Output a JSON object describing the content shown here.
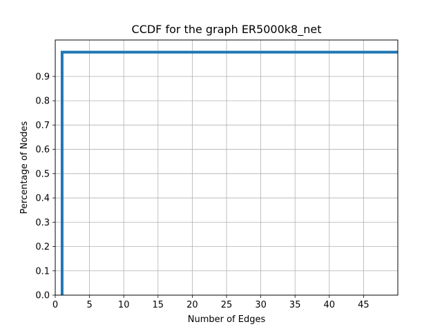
{
  "chart_data": {
    "type": "line",
    "title": "CCDF for the graph ER5000k8_net",
    "xlabel": "Number of Edges",
    "ylabel": "Percentage of Nodes",
    "xlim": [
      0,
      50
    ],
    "ylim": [
      0,
      1.05
    ],
    "xticks": [
      0,
      5,
      10,
      15,
      20,
      25,
      30,
      35,
      40,
      45
    ],
    "yticks": [
      0.0,
      0.1,
      0.2,
      0.3,
      0.4,
      0.5,
      0.6,
      0.7,
      0.8,
      0.9
    ],
    "xtick_labels": [
      "0",
      "5",
      "10",
      "15",
      "20",
      "25",
      "30",
      "35",
      "40",
      "45"
    ],
    "ytick_labels": [
      "0.0",
      "0.1",
      "0.2",
      "0.3",
      "0.4",
      "0.5",
      "0.6",
      "0.7",
      "0.8",
      "0.9"
    ],
    "grid": true,
    "series": [
      {
        "color": "#1f77b4",
        "x": [
          1,
          1,
          50
        ],
        "y": [
          0.0,
          1.0,
          1.0
        ]
      }
    ]
  }
}
